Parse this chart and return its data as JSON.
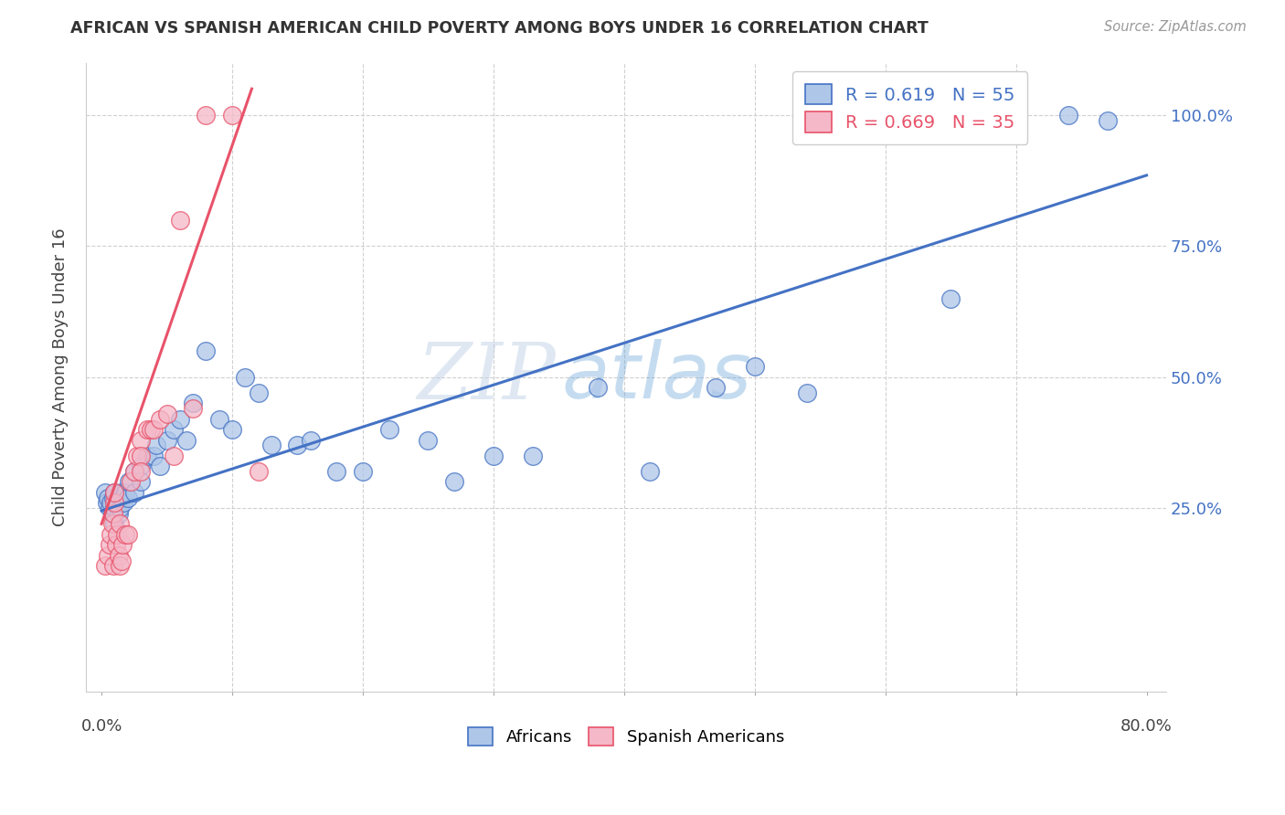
{
  "title": "AFRICAN VS SPANISH AMERICAN CHILD POVERTY AMONG BOYS UNDER 16 CORRELATION CHART",
  "source": "Source: ZipAtlas.com",
  "ylabel": "Child Poverty Among Boys Under 16",
  "ytick_vals": [
    0.0,
    0.25,
    0.5,
    0.75,
    1.0
  ],
  "ytick_right_labels": [
    "",
    "25.0%",
    "50.0%",
    "75.0%",
    "100.0%"
  ],
  "xlim": [
    -0.012,
    0.815
  ],
  "ylim": [
    -0.1,
    1.1
  ],
  "legend_blue_label": "R = 0.619   N = 55",
  "legend_pink_label": "R = 0.669   N = 35",
  "africans_color": "#aec6e8",
  "spanish_color": "#f4b8c8",
  "line_blue": "#4472c4",
  "line_pink": "#e8536a",
  "watermark_zip": "ZIP",
  "watermark_atlas": "atlas",
  "blue_line_x0": 0.0,
  "blue_line_y0": 0.245,
  "blue_line_x1": 0.8,
  "blue_line_y1": 0.885,
  "pink_line_x0": 0.0,
  "pink_line_y0": 0.22,
  "pink_line_x1": 0.115,
  "pink_line_y1": 1.05,
  "africans_x": [
    0.003,
    0.004,
    0.005,
    0.006,
    0.007,
    0.008,
    0.009,
    0.01,
    0.01,
    0.01,
    0.012,
    0.013,
    0.014,
    0.015,
    0.016,
    0.017,
    0.018,
    0.02,
    0.021,
    0.025,
    0.025,
    0.03,
    0.03,
    0.035,
    0.04,
    0.042,
    0.045,
    0.05,
    0.055,
    0.06,
    0.065,
    0.07,
    0.08,
    0.09,
    0.1,
    0.11,
    0.12,
    0.13,
    0.15,
    0.16,
    0.18,
    0.2,
    0.22,
    0.25,
    0.27,
    0.3,
    0.33,
    0.38,
    0.42,
    0.47,
    0.5,
    0.54,
    0.65,
    0.74,
    0.77
  ],
  "africans_y": [
    0.28,
    0.26,
    0.27,
    0.25,
    0.26,
    0.24,
    0.27,
    0.25,
    0.28,
    0.22,
    0.26,
    0.24,
    0.25,
    0.28,
    0.27,
    0.26,
    0.28,
    0.27,
    0.3,
    0.28,
    0.32,
    0.33,
    0.3,
    0.35,
    0.35,
    0.37,
    0.33,
    0.38,
    0.4,
    0.42,
    0.38,
    0.45,
    0.55,
    0.42,
    0.4,
    0.5,
    0.47,
    0.37,
    0.37,
    0.38,
    0.32,
    0.32,
    0.4,
    0.38,
    0.3,
    0.35,
    0.35,
    0.48,
    0.32,
    0.48,
    0.52,
    0.47,
    0.65,
    1.0,
    0.99
  ],
  "spanish_x": [
    0.003,
    0.005,
    0.006,
    0.007,
    0.008,
    0.009,
    0.009,
    0.01,
    0.01,
    0.011,
    0.012,
    0.013,
    0.014,
    0.014,
    0.015,
    0.016,
    0.018,
    0.02,
    0.022,
    0.025,
    0.027,
    0.03,
    0.03,
    0.03,
    0.035,
    0.038,
    0.04,
    0.045,
    0.05,
    0.055,
    0.06,
    0.07,
    0.08,
    0.1,
    0.12
  ],
  "spanish_y": [
    0.14,
    0.16,
    0.18,
    0.2,
    0.22,
    0.24,
    0.14,
    0.26,
    0.28,
    0.18,
    0.2,
    0.16,
    0.14,
    0.22,
    0.15,
    0.18,
    0.2,
    0.2,
    0.3,
    0.32,
    0.35,
    0.38,
    0.35,
    0.32,
    0.4,
    0.4,
    0.4,
    0.42,
    0.43,
    0.35,
    0.8,
    0.44,
    1.0,
    1.0,
    0.32
  ]
}
